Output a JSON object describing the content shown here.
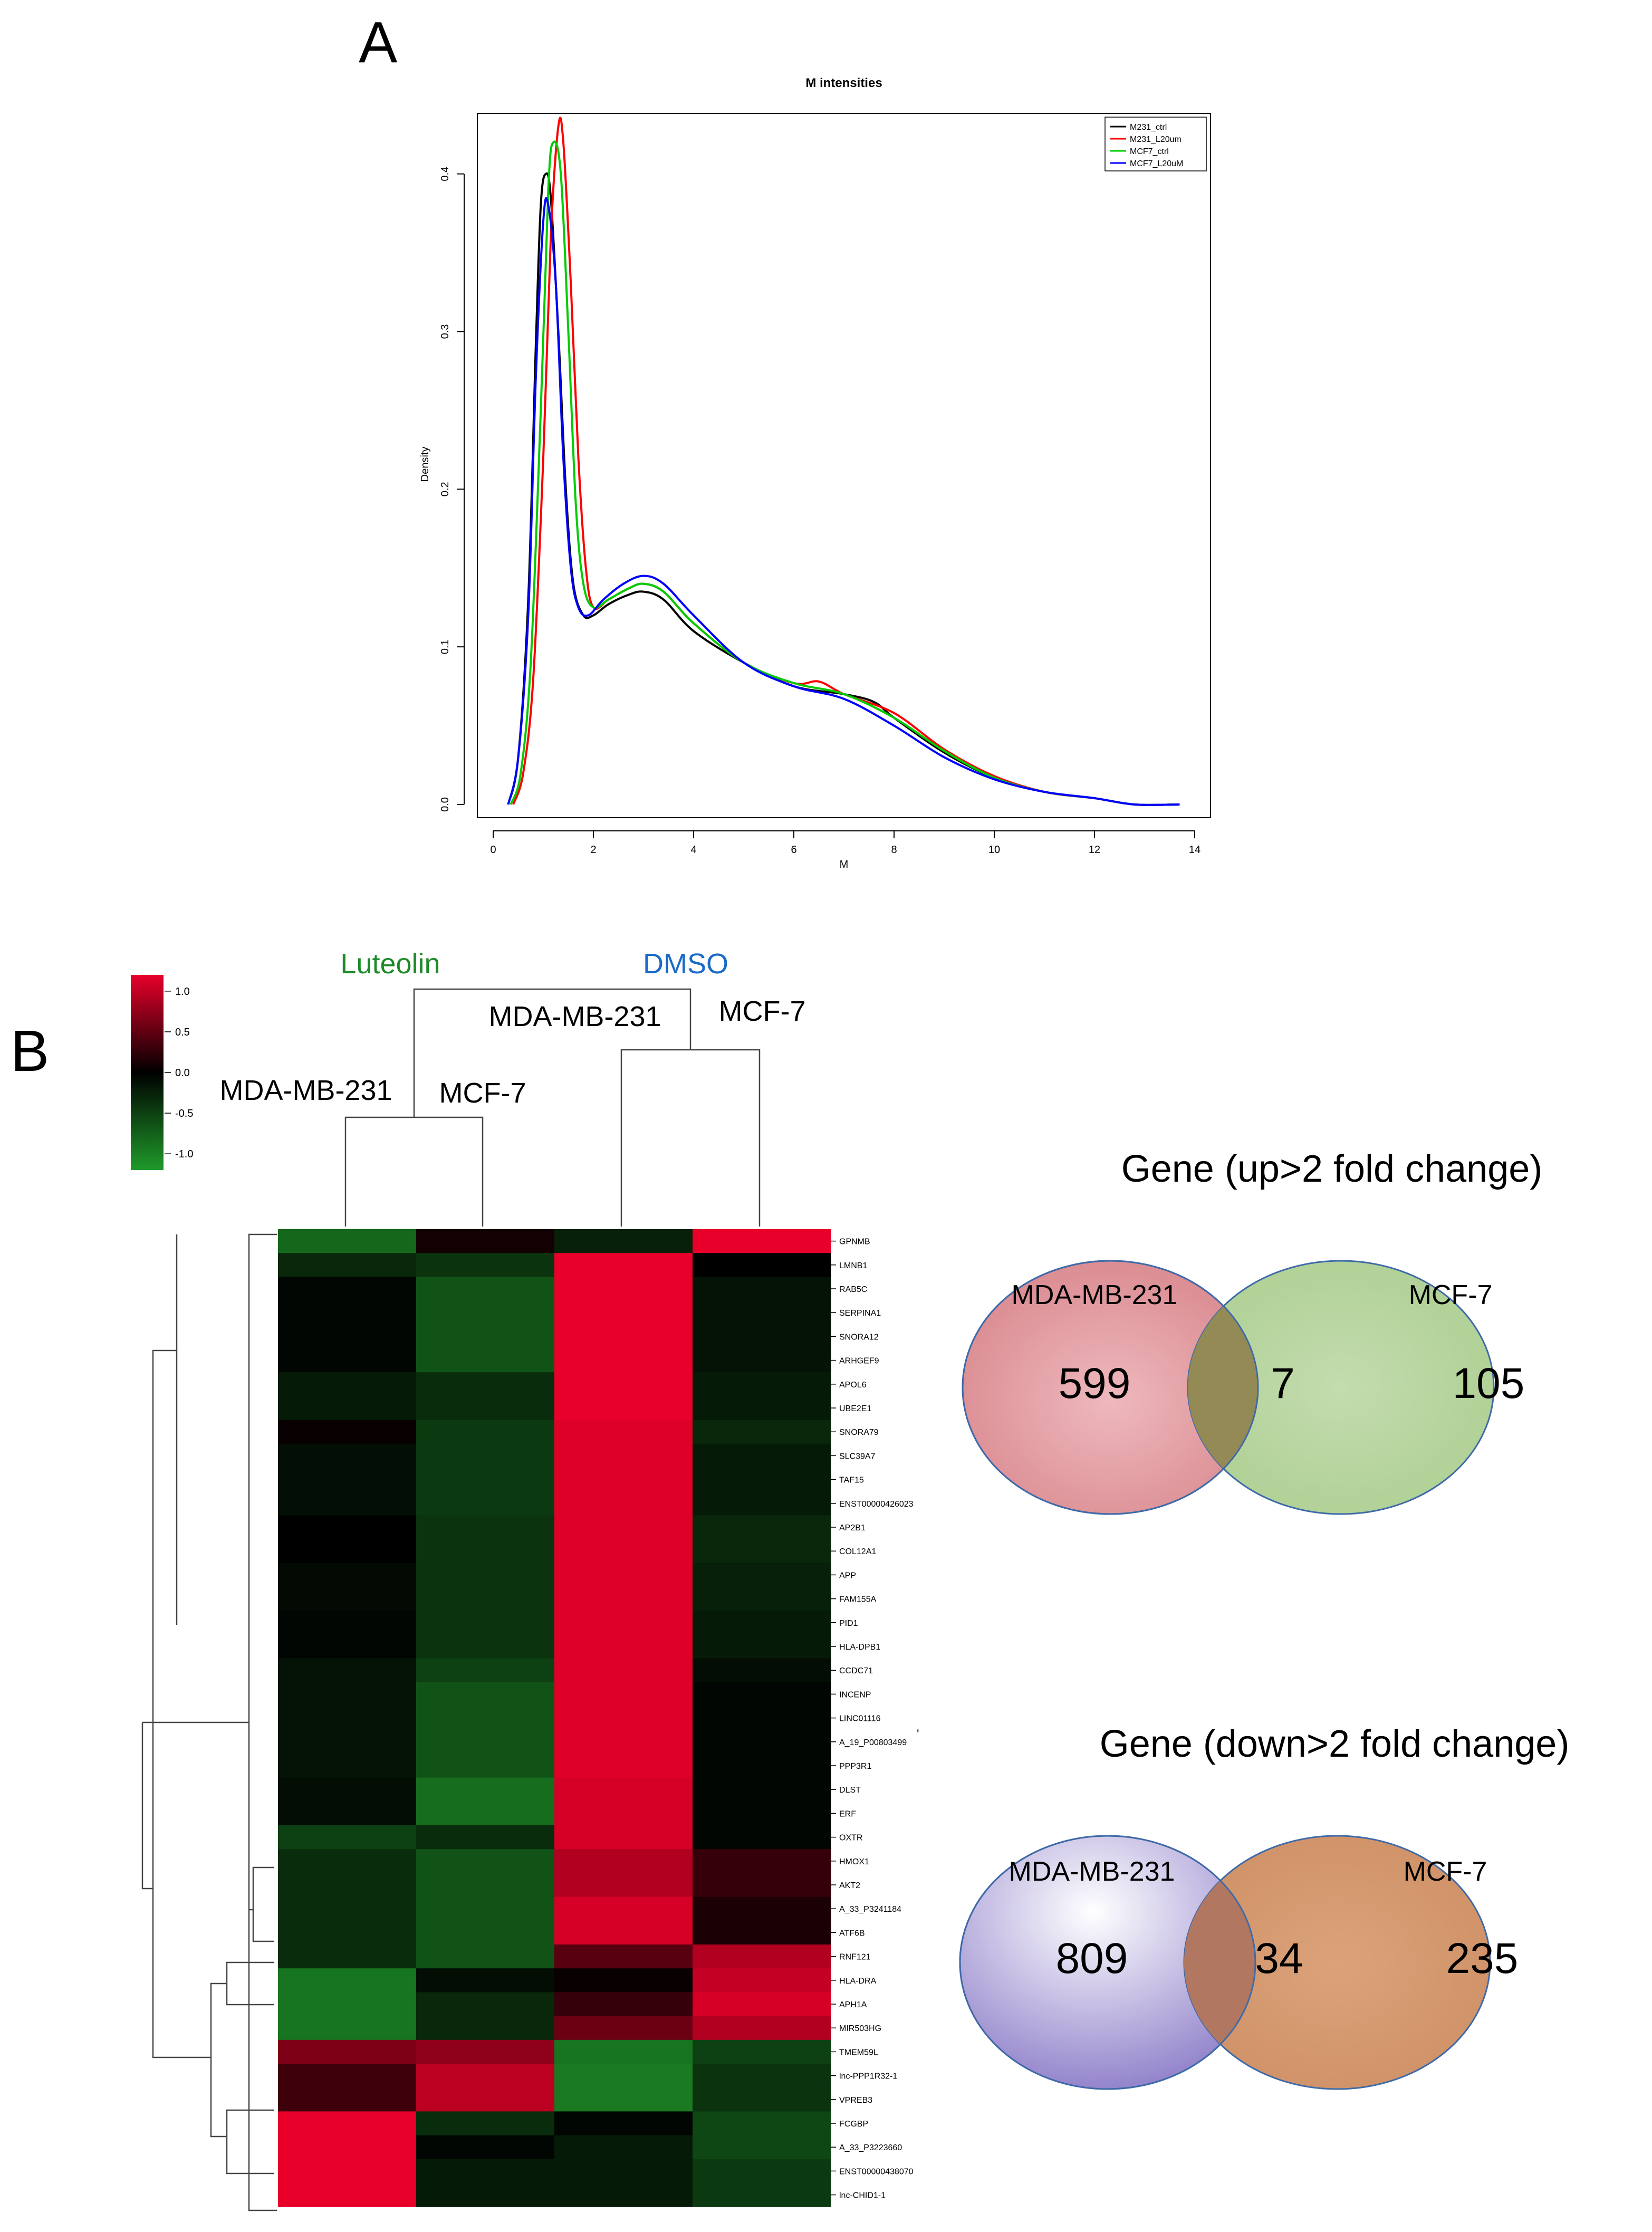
{
  "panels": {
    "a": "A",
    "b": "B"
  },
  "density": {
    "title": "M intensities",
    "xlabel": "M",
    "ylabel": "Density",
    "xticks": [
      "0",
      "2",
      "4",
      "6",
      "8",
      "10",
      "12",
      "14"
    ],
    "yticks": [
      "0.0",
      "0.1",
      "0.2",
      "0.3",
      "0.4"
    ],
    "legend": [
      {
        "label": "M231_ctrl",
        "color": "#000000"
      },
      {
        "label": "M231_L20um",
        "color": "#ff0000"
      },
      {
        "label": "MCF7_ctrl",
        "color": "#00cc00"
      },
      {
        "label": "MCF7_L20uM",
        "color": "#0000ff"
      }
    ]
  },
  "heatmap": {
    "color_key_ticks": [
      "1.0",
      "0.5",
      "0.0",
      "-0.5",
      "-1.0"
    ],
    "labels": {
      "luteolin": "Luteolin",
      "dmso": "DMSO",
      "mda_top": "MDA-MB-231",
      "mcf_top": "MCF-7",
      "mda_left": "MDA-MB-231",
      "mcf_left": "MCF-7"
    },
    "stray_mark": "'",
    "genes": [
      "GPNMB",
      "LMNB1",
      "RAB5C",
      "SERPINA1",
      "SNORA12",
      "ARHGEF9",
      "APOL6",
      "UBE2E1",
      "SNORA79",
      "SLC39A7",
      "TAF15",
      "ENST00000426023",
      "AP2B1",
      "COL12A1",
      "APP",
      "FAM155A",
      "PID1",
      "HLA-DPB1",
      "CCDC71",
      "INCENP",
      "LINC01116",
      "A_19_P00803499",
      "PPP3R1",
      "DLST",
      "ERF",
      "OXTR",
      "HMOX1",
      "AKT2",
      "A_33_P3241184",
      "ATF6B",
      "RNF121",
      "HLA-DRA",
      "APH1A",
      "MIR503HG",
      "TMEM59L",
      "lnc-PPP1R32-1",
      "VPREB3",
      "FCGBP",
      "A_33_P3223660",
      "ENST00000438070",
      "lnc-CHID1-1"
    ]
  },
  "chart_data": [
    {
      "type": "line",
      "title": "M intensities",
      "xlabel": "M",
      "ylabel": "Density",
      "xlim": [
        0,
        14
      ],
      "ylim": [
        0,
        0.43
      ],
      "series": [
        {
          "name": "M231_ctrl",
          "color": "#000000",
          "x": [
            0.3,
            0.5,
            0.7,
            0.85,
            0.95,
            1.05,
            1.15,
            1.3,
            1.45,
            1.6,
            1.8,
            2.0,
            2.3,
            2.7,
            3.0,
            3.4,
            4.0,
            5.0,
            6.0,
            7.0,
            7.6,
            8.0,
            9.0,
            10.0,
            11.0,
            12.0,
            12.8,
            13.7
          ],
          "y": [
            0.0,
            0.03,
            0.13,
            0.29,
            0.38,
            0.4,
            0.385,
            0.3,
            0.2,
            0.14,
            0.12,
            0.12,
            0.127,
            0.133,
            0.135,
            0.13,
            0.11,
            0.09,
            0.075,
            0.07,
            0.065,
            0.055,
            0.033,
            0.017,
            0.008,
            0.004,
            0.0,
            0.0
          ]
        },
        {
          "name": "M231_L20um",
          "color": "#ff0000",
          "x": [
            0.4,
            0.6,
            0.8,
            1.0,
            1.15,
            1.3,
            1.4,
            1.55,
            1.7,
            1.85,
            2.0,
            2.3,
            2.7,
            3.0,
            3.4,
            4.0,
            5.0,
            6.0,
            6.5,
            7.0,
            8.0,
            9.0,
            10.0,
            11.0,
            12.0,
            12.8,
            13.7
          ],
          "y": [
            0.0,
            0.02,
            0.08,
            0.22,
            0.36,
            0.43,
            0.42,
            0.33,
            0.22,
            0.15,
            0.125,
            0.13,
            0.137,
            0.14,
            0.135,
            0.115,
            0.09,
            0.077,
            0.078,
            0.07,
            0.058,
            0.035,
            0.018,
            0.008,
            0.004,
            0.0,
            0.0
          ]
        },
        {
          "name": "MCF7_ctrl",
          "color": "#00cc00",
          "x": [
            0.35,
            0.55,
            0.75,
            0.95,
            1.1,
            1.2,
            1.35,
            1.5,
            1.65,
            1.8,
            2.0,
            2.3,
            2.7,
            3.0,
            3.4,
            4.0,
            5.0,
            6.0,
            7.0,
            8.0,
            9.0,
            10.0,
            11.0,
            12.0,
            12.8,
            13.7
          ],
          "y": [
            0.0,
            0.02,
            0.09,
            0.25,
            0.39,
            0.42,
            0.4,
            0.3,
            0.19,
            0.14,
            0.125,
            0.13,
            0.137,
            0.14,
            0.135,
            0.115,
            0.09,
            0.077,
            0.07,
            0.055,
            0.034,
            0.017,
            0.008,
            0.004,
            0.0,
            0.0
          ]
        },
        {
          "name": "MCF7_L20uM",
          "color": "#0000ff",
          "x": [
            0.3,
            0.5,
            0.7,
            0.85,
            1.0,
            1.1,
            1.25,
            1.4,
            1.55,
            1.7,
            1.9,
            2.2,
            2.6,
            3.0,
            3.4,
            4.0,
            5.0,
            6.0,
            7.0,
            8.0,
            9.0,
            10.0,
            11.0,
            12.0,
            12.8,
            13.7
          ],
          "y": [
            0.0,
            0.03,
            0.12,
            0.27,
            0.37,
            0.38,
            0.33,
            0.22,
            0.15,
            0.125,
            0.12,
            0.13,
            0.14,
            0.145,
            0.14,
            0.12,
            0.09,
            0.075,
            0.067,
            0.05,
            0.03,
            0.016,
            0.008,
            0.004,
            0.0,
            0.0
          ]
        }
      ]
    },
    {
      "type": "heatmap",
      "columns": [
        "MDA-MB-231 Luteolin",
        "MCF-7 Luteolin",
        "MDA-MB-231 DMSO",
        "MCF-7 DMSO"
      ],
      "rows": [
        "GPNMB",
        "LMNB1",
        "RAB5C",
        "SERPINA1",
        "SNORA12",
        "ARHGEF9",
        "APOL6",
        "UBE2E1",
        "SNORA79",
        "SLC39A7",
        "TAF15",
        "ENST00000426023",
        "AP2B1",
        "COL12A1",
        "APP",
        "FAM155A",
        "PID1",
        "HLA-DPB1",
        "CCDC71",
        "INCENP",
        "LINC01116",
        "A_19_P00803499",
        "PPP3R1",
        "DLST",
        "ERF",
        "OXTR",
        "HMOX1",
        "AKT2",
        "A_33_P3241184",
        "ATF6B",
        "RNF121",
        "HLA-DRA",
        "APH1A",
        "MIR503HG",
        "TMEM59L",
        "lnc-PPP1R32-1",
        "VPREB3",
        "FCGBP",
        "A_33_P3223660",
        "ENST00000438070",
        "lnc-CHID1-1"
      ],
      "values": [
        [
          -0.8,
          0.1,
          -0.25,
          1.3
        ],
        [
          -0.3,
          -0.4,
          1.3,
          0.0
        ],
        [
          -0.05,
          -0.65,
          1.3,
          -0.15
        ],
        [
          -0.05,
          -0.65,
          1.3,
          -0.15
        ],
        [
          -0.05,
          -0.65,
          1.3,
          -0.15
        ],
        [
          -0.05,
          -0.65,
          1.3,
          -0.15
        ],
        [
          -0.2,
          -0.35,
          1.3,
          -0.2
        ],
        [
          -0.2,
          -0.35,
          1.3,
          -0.2
        ],
        [
          0.05,
          -0.45,
          1.25,
          -0.3
        ],
        [
          -0.12,
          -0.45,
          1.25,
          -0.2
        ],
        [
          -0.12,
          -0.45,
          1.25,
          -0.2
        ],
        [
          -0.12,
          -0.45,
          1.25,
          -0.2
        ],
        [
          0.0,
          -0.4,
          1.25,
          -0.3
        ],
        [
          0.0,
          -0.4,
          1.25,
          -0.3
        ],
        [
          -0.08,
          -0.4,
          1.25,
          -0.25
        ],
        [
          -0.08,
          -0.4,
          1.25,
          -0.25
        ],
        [
          -0.05,
          -0.4,
          1.25,
          -0.2
        ],
        [
          -0.05,
          -0.4,
          1.25,
          -0.2
        ],
        [
          -0.15,
          -0.5,
          1.25,
          -0.1
        ],
        [
          -0.15,
          -0.65,
          1.25,
          -0.05
        ],
        [
          -0.15,
          -0.65,
          1.25,
          -0.05
        ],
        [
          -0.15,
          -0.65,
          1.25,
          -0.05
        ],
        [
          -0.15,
          -0.65,
          1.25,
          -0.05
        ],
        [
          -0.1,
          -0.85,
          1.2,
          -0.05
        ],
        [
          -0.1,
          -0.85,
          1.2,
          -0.05
        ],
        [
          -0.5,
          -0.35,
          1.2,
          -0.05
        ],
        [
          -0.35,
          -0.65,
          1.0,
          0.3
        ],
        [
          -0.35,
          -0.65,
          1.0,
          0.3
        ],
        [
          -0.35,
          -0.65,
          1.2,
          0.15
        ],
        [
          -0.35,
          -0.65,
          1.2,
          0.15
        ],
        [
          -0.35,
          -0.65,
          0.5,
          1.0
        ],
        [
          -0.9,
          -0.1,
          0.05,
          1.1
        ],
        [
          -0.9,
          -0.3,
          0.3,
          1.2
        ],
        [
          -0.9,
          -0.3,
          0.6,
          1.0
        ],
        [
          0.7,
          0.8,
          -0.9,
          -0.5
        ],
        [
          0.35,
          1.05,
          -0.95,
          -0.4
        ],
        [
          0.35,
          1.05,
          -0.95,
          -0.4
        ],
        [
          1.3,
          -0.35,
          -0.05,
          -0.55
        ],
        [
          1.3,
          -0.05,
          -0.2,
          -0.55
        ],
        [
          1.3,
          -0.2,
          -0.2,
          -0.45
        ],
        [
          1.3,
          -0.2,
          -0.2,
          -0.45
        ]
      ],
      "color_scale": {
        "min": -1.2,
        "max": 1.3,
        "low": "#1f9a2a",
        "mid": "#000000",
        "high": "#e8002a"
      }
    },
    {
      "type": "venn",
      "title": "Gene (up>2 fold change)",
      "sets": [
        {
          "label": "MDA-MB-231",
          "only": "599",
          "color": "#e8a0a5"
        },
        {
          "label": "MCF-7",
          "only": "105",
          "color": "#b6d4a0"
        }
      ],
      "overlap": "7"
    },
    {
      "type": "venn",
      "title": "Gene (down>2 fold change)",
      "sets": [
        {
          "label": "MDA-MB-231",
          "only": "809",
          "color": "#9a8ad0"
        },
        {
          "label": "MCF-7",
          "only": "235",
          "color": "#d3976a"
        }
      ],
      "overlap": "34"
    }
  ]
}
